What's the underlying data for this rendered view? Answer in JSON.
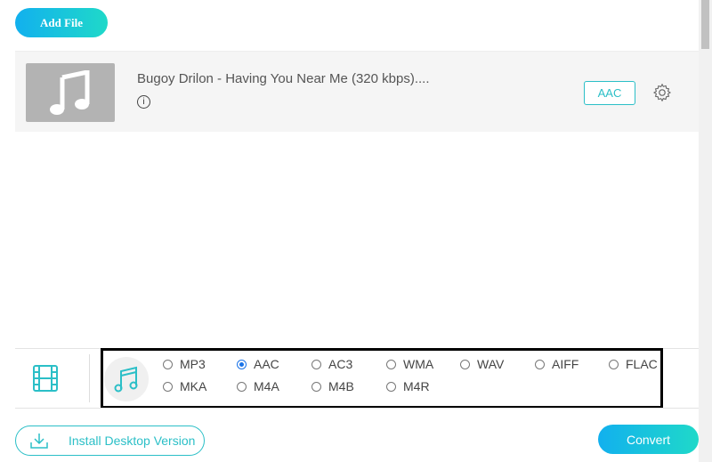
{
  "toolbar": {
    "add_file_label": "Add File"
  },
  "file": {
    "title": "Bugoy Drilon - Having You Near Me (320 kbps)....",
    "format_badge": "AAC",
    "thumbnail_icon": "music-note-icon",
    "info_icon": "info-icon",
    "settings_icon": "gear-icon"
  },
  "formats": {
    "options": [
      {
        "label": "MP3",
        "selected": false
      },
      {
        "label": "AAC",
        "selected": true
      },
      {
        "label": "AC3",
        "selected": false
      },
      {
        "label": "WMA",
        "selected": false
      },
      {
        "label": "WAV",
        "selected": false
      },
      {
        "label": "AIFF",
        "selected": false
      },
      {
        "label": "FLAC",
        "selected": false
      },
      {
        "label": "MKA",
        "selected": false
      },
      {
        "label": "M4A",
        "selected": false
      },
      {
        "label": "M4B",
        "selected": false
      },
      {
        "label": "M4R",
        "selected": false
      }
    ]
  },
  "footer": {
    "install_label": "Install Desktop Version",
    "convert_label": "Convert"
  },
  "colors": {
    "accent": "#2bbfc7",
    "gradient_start": "#12b0ee",
    "gradient_end": "#1fd9c9",
    "radio_selected": "#1a73e8"
  }
}
